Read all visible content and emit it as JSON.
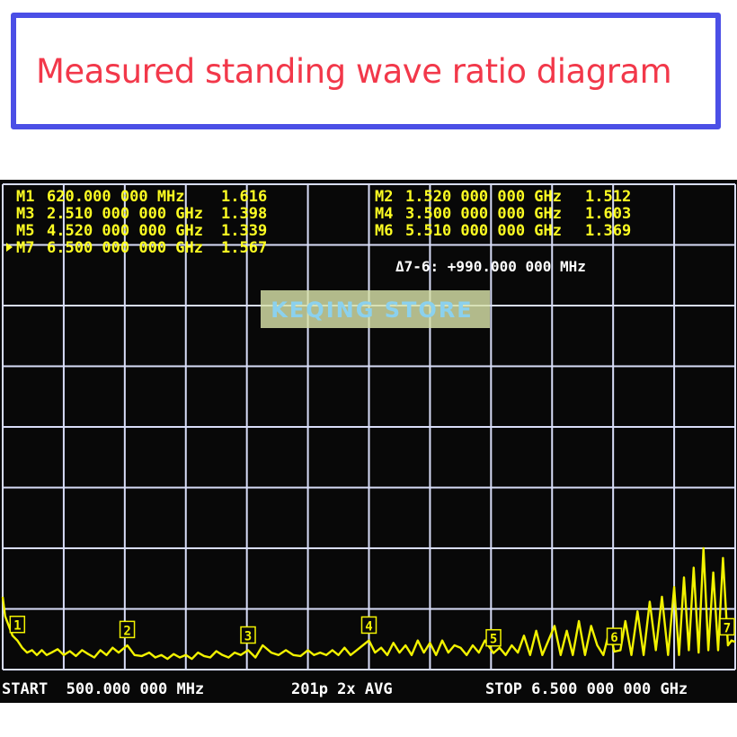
{
  "title": "Measured standing wave ratio diagram",
  "watermark": "KEQING STORE",
  "colors": {
    "trace": "#f2f200",
    "grid": "#d8ddf8",
    "marker_text": "#ffff22",
    "status_text": "#ffffff",
    "title": "#f2384a",
    "frame": "#4b4fe6"
  },
  "markers_left": [
    {
      "label": "M1",
      "freq": "620.000 000 MHz",
      "value": "1.616",
      "active": false
    },
    {
      "label": "M3",
      "freq": "2.510 000 000 GHz",
      "value": "1.398",
      "active": false
    },
    {
      "label": "M5",
      "freq": "4.520 000 000 GHz",
      "value": "1.339",
      "active": false
    },
    {
      "label": "M7",
      "freq": "6.500 000 000 GHz",
      "value": "1.567",
      "active": true
    }
  ],
  "markers_right": [
    {
      "label": "M2",
      "freq": "1.520 000 000 GHz",
      "value": "1.512"
    },
    {
      "label": "M4",
      "freq": "3.500 000 000 GHz",
      "value": "1.603"
    },
    {
      "label": "M6",
      "freq": "5.510 000 000 GHz",
      "value": "1.369"
    }
  ],
  "delta": "Δ7-6: +990.000 000 MHz",
  "status": {
    "start": "START  500.000 000 MHz",
    "points": "201p 2x AVG",
    "stop": "STOP 6.500 000 000 GHz"
  },
  "chart_data": {
    "type": "line",
    "x_unit": "GHz",
    "xlim": [
      0.5,
      6.5
    ],
    "ylim": [
      1.0,
      11.0
    ],
    "grid": true,
    "x_divisions": 12,
    "y_divisions": 8,
    "series": [
      {
        "x": [
          0.5,
          0.52,
          0.55,
          0.58,
          0.62,
          0.66,
          0.7,
          0.74,
          0.78,
          0.82,
          0.86,
          0.9,
          0.95,
          1.0,
          1.05,
          1.1,
          1.15,
          1.2,
          1.25,
          1.3,
          1.35,
          1.4,
          1.45,
          1.52,
          1.58,
          1.64,
          1.7,
          1.75,
          1.8,
          1.85,
          1.9,
          1.95,
          2.0,
          2.05,
          2.1,
          2.15,
          2.2,
          2.25,
          2.3,
          2.35,
          2.4,
          2.45,
          2.51,
          2.57,
          2.63,
          2.7,
          2.76,
          2.82,
          2.88,
          2.94,
          3.0,
          3.05,
          3.1,
          3.15,
          3.2,
          3.25,
          3.3,
          3.35,
          3.4,
          3.45,
          3.5,
          3.55,
          3.6,
          3.65,
          3.7,
          3.75,
          3.8,
          3.85,
          3.9,
          3.95,
          4.0,
          4.05,
          4.1,
          4.15,
          4.2,
          4.25,
          4.3,
          4.35,
          4.4,
          4.45,
          4.52,
          4.57,
          4.62,
          4.67,
          4.72,
          4.77,
          4.82,
          4.87,
          4.92,
          4.97,
          5.02,
          5.07,
          5.12,
          5.17,
          5.22,
          5.27,
          5.32,
          5.37,
          5.42,
          5.47,
          5.51,
          5.56,
          5.6,
          5.65,
          5.7,
          5.75,
          5.8,
          5.85,
          5.9,
          5.95,
          6.0,
          6.04,
          6.08,
          6.12,
          6.16,
          6.2,
          6.24,
          6.28,
          6.32,
          6.36,
          6.4,
          6.44,
          6.47,
          6.5
        ],
        "y": [
          2.5,
          2.1,
          1.9,
          1.7,
          1.6,
          1.45,
          1.35,
          1.4,
          1.3,
          1.4,
          1.3,
          1.35,
          1.42,
          1.3,
          1.38,
          1.28,
          1.4,
          1.32,
          1.25,
          1.4,
          1.3,
          1.45,
          1.35,
          1.5,
          1.3,
          1.28,
          1.35,
          1.25,
          1.3,
          1.22,
          1.32,
          1.25,
          1.3,
          1.22,
          1.35,
          1.28,
          1.25,
          1.38,
          1.3,
          1.25,
          1.35,
          1.3,
          1.4,
          1.25,
          1.5,
          1.35,
          1.3,
          1.4,
          1.3,
          1.28,
          1.4,
          1.3,
          1.35,
          1.3,
          1.4,
          1.3,
          1.45,
          1.3,
          1.4,
          1.5,
          1.6,
          1.35,
          1.45,
          1.3,
          1.55,
          1.35,
          1.5,
          1.3,
          1.6,
          1.35,
          1.55,
          1.3,
          1.6,
          1.35,
          1.5,
          1.45,
          1.3,
          1.5,
          1.35,
          1.6,
          1.34,
          1.45,
          1.3,
          1.5,
          1.35,
          1.7,
          1.3,
          1.8,
          1.3,
          1.6,
          1.9,
          1.3,
          1.8,
          1.3,
          2.0,
          1.3,
          1.9,
          1.5,
          1.3,
          1.8,
          1.37,
          1.4,
          2.0,
          1.3,
          2.2,
          1.3,
          2.4,
          1.4,
          2.5,
          1.3,
          2.7,
          1.3,
          2.9,
          1.4,
          3.1,
          1.35,
          3.5,
          1.4,
          3.0,
          1.4,
          3.3,
          1.5,
          1.6,
          1.57
        ]
      }
    ],
    "marker_points": [
      {
        "id": "1",
        "x": 0.62,
        "y": 1.616
      },
      {
        "id": "2",
        "x": 1.52,
        "y": 1.512
      },
      {
        "id": "3",
        "x": 2.51,
        "y": 1.398
      },
      {
        "id": "4",
        "x": 3.5,
        "y": 1.603
      },
      {
        "id": "5",
        "x": 4.52,
        "y": 1.339
      },
      {
        "id": "6",
        "x": 5.51,
        "y": 1.369
      },
      {
        "id": "7",
        "x": 6.5,
        "y": 1.567
      }
    ]
  }
}
